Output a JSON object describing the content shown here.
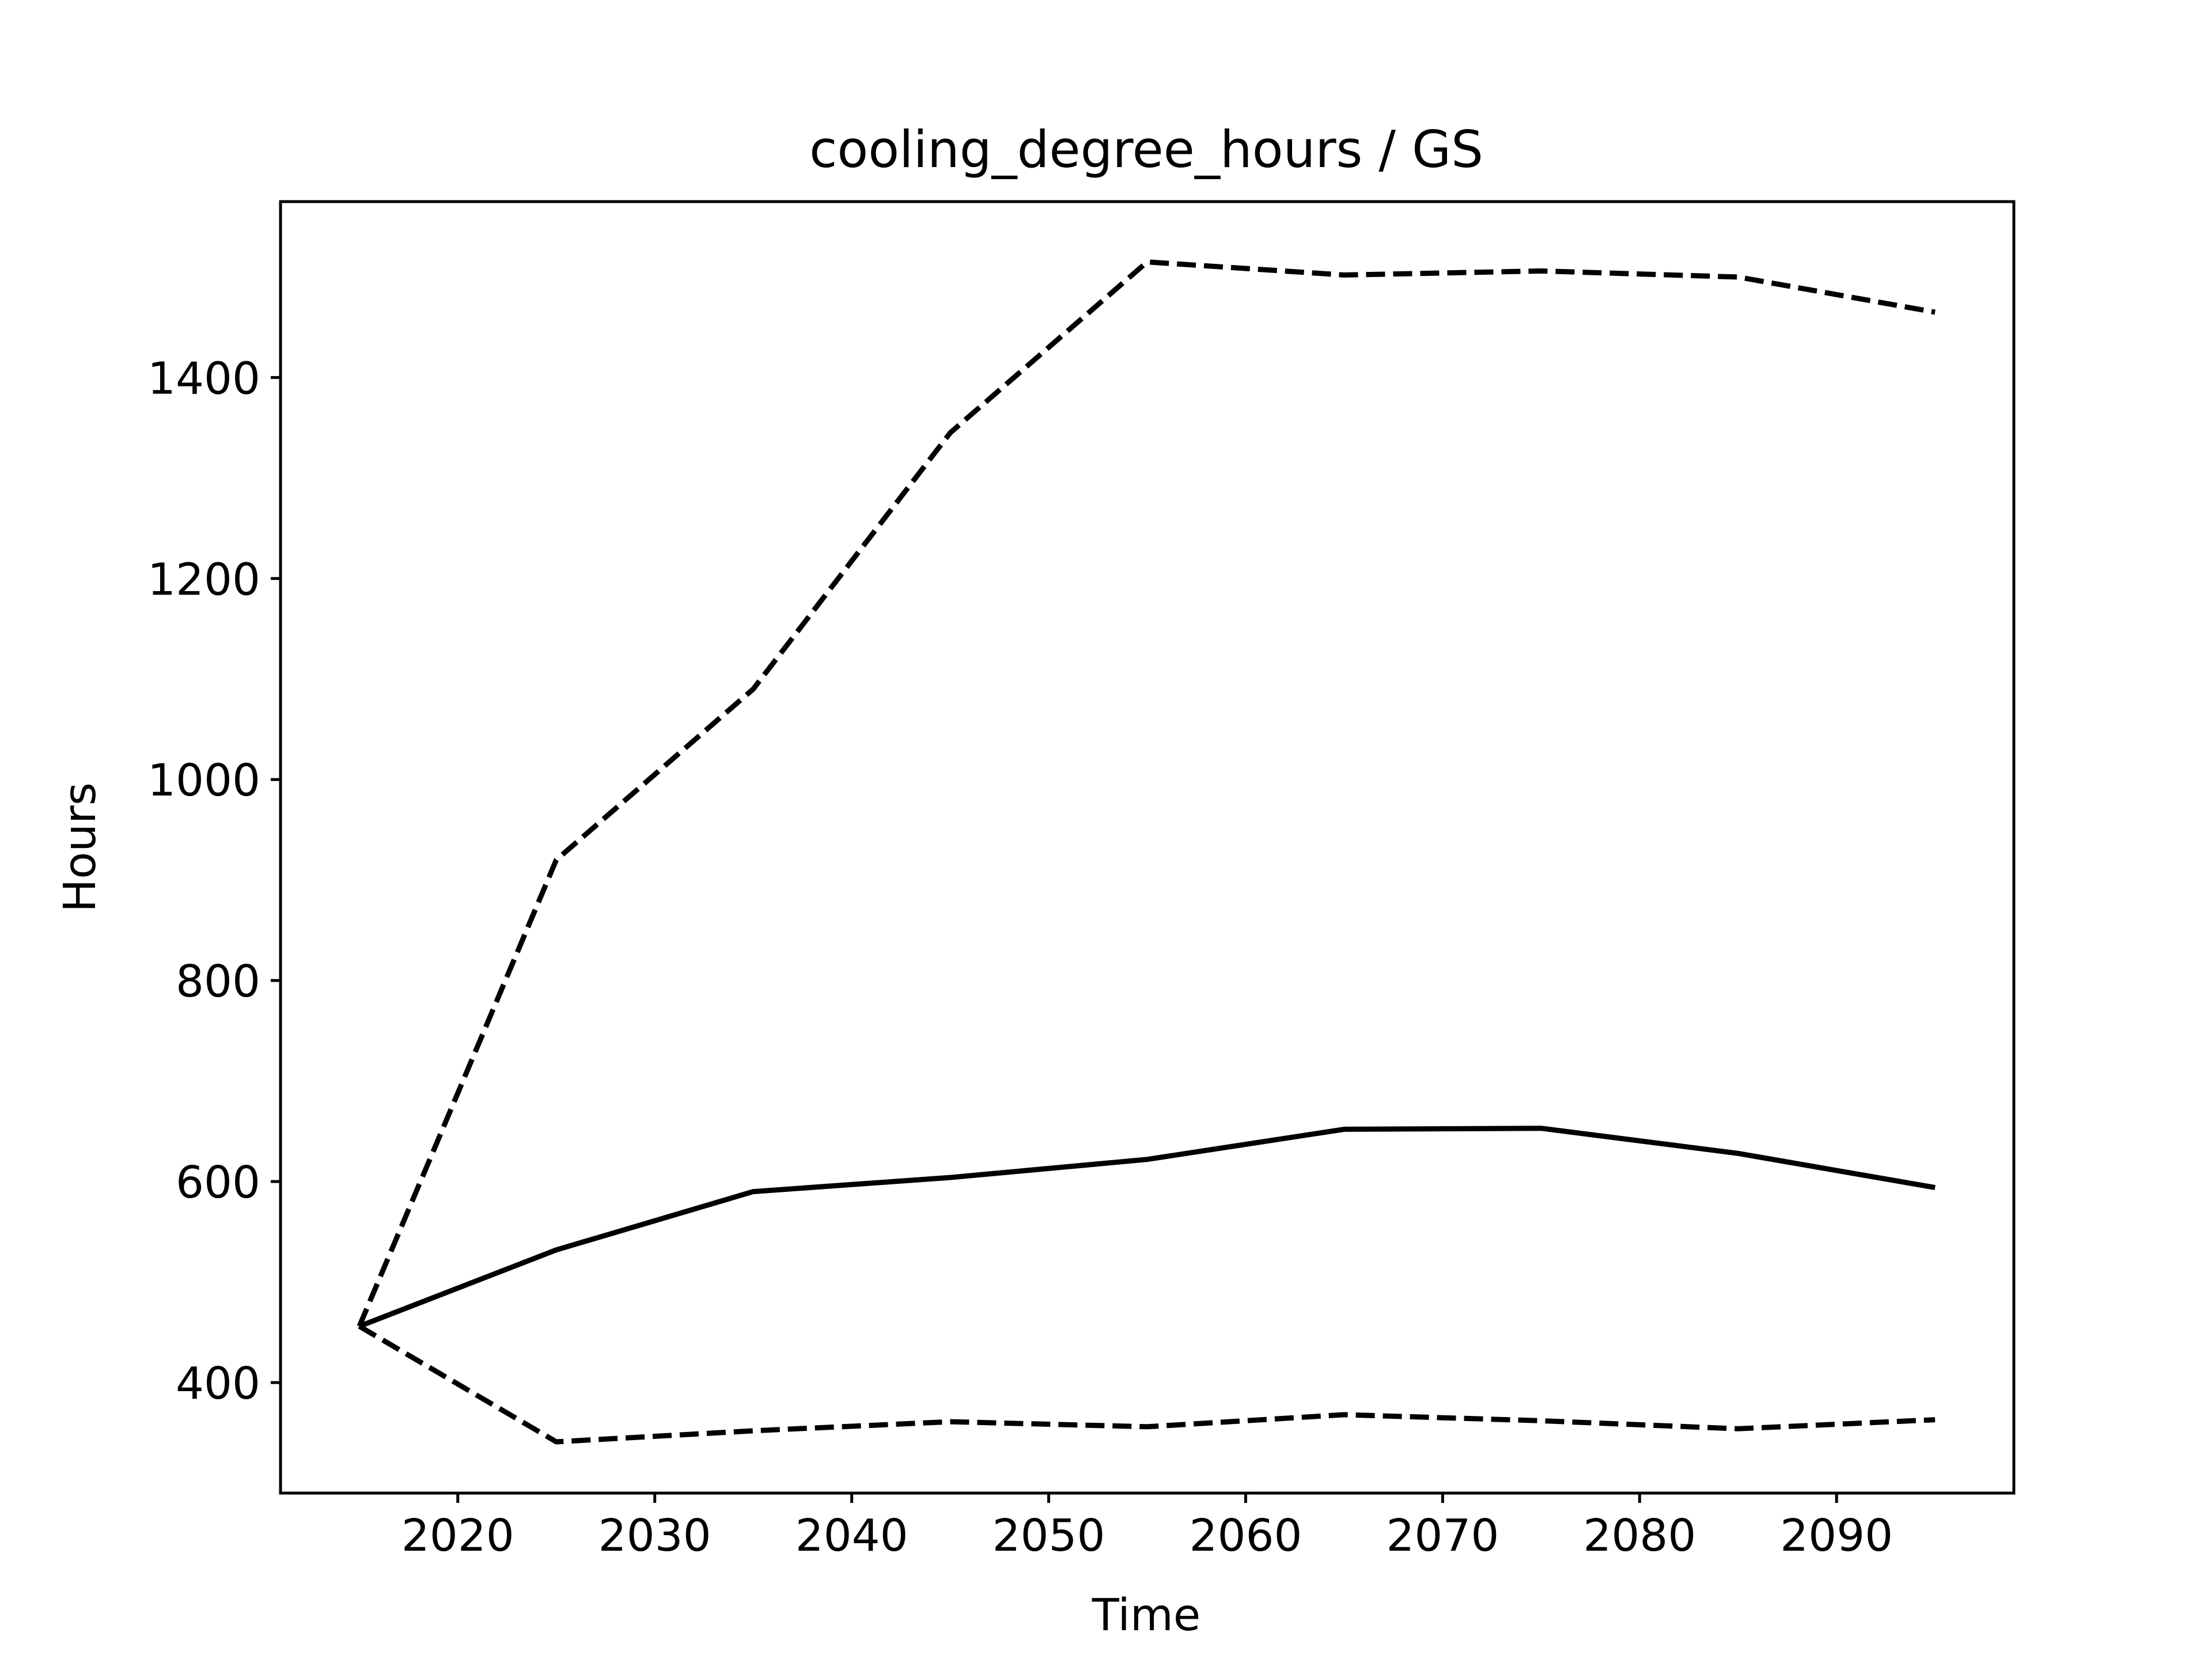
{
  "chart_data": {
    "type": "line",
    "title": "cooling_degree_hours / GS",
    "xlabel": "Time",
    "ylabel": "Hours",
    "xlim": [
      2011,
      2099
    ],
    "ylim": [
      290,
      1575
    ],
    "xticks": [
      2020,
      2030,
      2040,
      2050,
      2060,
      2070,
      2080,
      2090
    ],
    "yticks": [
      400,
      600,
      800,
      1000,
      1200,
      1400
    ],
    "x": [
      2015,
      2025,
      2035,
      2045,
      2055,
      2065,
      2075,
      2085,
      2095
    ],
    "series": [
      {
        "style": "solid",
        "values": [
          456,
          532,
          590,
          604,
          622,
          652,
          653,
          628,
          594
        ]
      },
      {
        "style": "dashed",
        "values": [
          456,
          920,
          1090,
          1345,
          1515,
          1502,
          1506,
          1500,
          1465
        ]
      },
      {
        "style": "dashed",
        "values": [
          456,
          341,
          352,
          361,
          356,
          368,
          362,
          354,
          363
        ]
      }
    ],
    "grid": false,
    "legend": "none"
  }
}
